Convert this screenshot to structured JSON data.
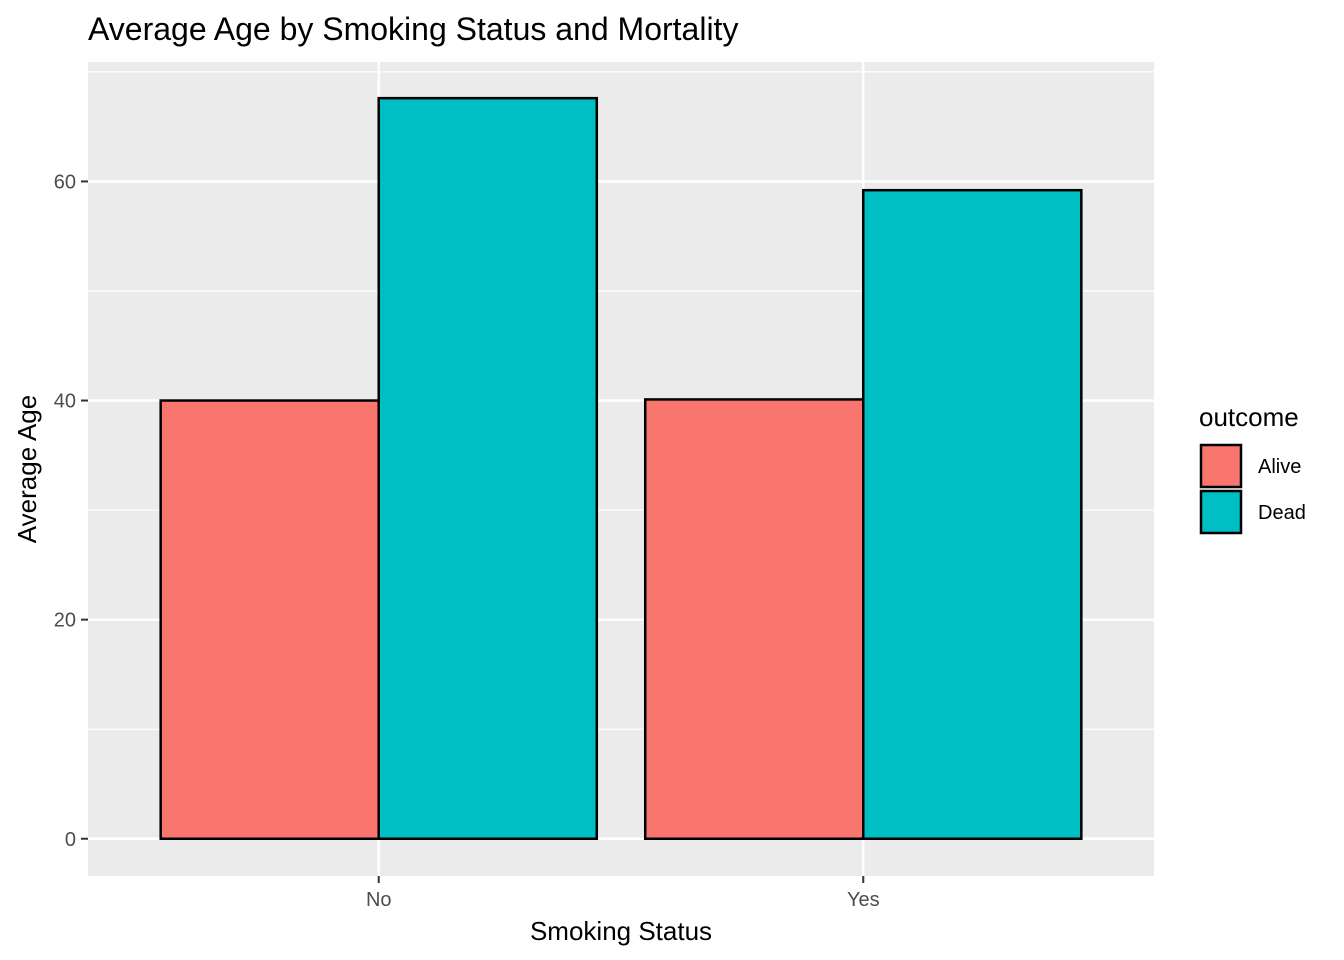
{
  "chart_data": {
    "type": "bar",
    "title": "Average Age by Smoking Status and Mortality",
    "xlabel": "Smoking Status",
    "ylabel": "Average Age",
    "categories": [
      "No",
      "Yes"
    ],
    "series": [
      {
        "name": "Alive",
        "values": [
          40.0,
          40.1
        ],
        "color": "#F8766D"
      },
      {
        "name": "Dead",
        "values": [
          67.6,
          59.2
        ],
        "color": "#00BFC4"
      }
    ],
    "ylim": [
      -3.4,
      70.9
    ],
    "yticks": [
      0,
      20,
      40,
      60
    ],
    "yticks_labels": [
      "0",
      "20",
      "40",
      "60"
    ],
    "grid": true,
    "panel_background": "#EBEBEB",
    "grid_color": "#FFFFFF",
    "bar_outline": "#000000",
    "legend": {
      "title": "outcome",
      "position": "right"
    }
  }
}
